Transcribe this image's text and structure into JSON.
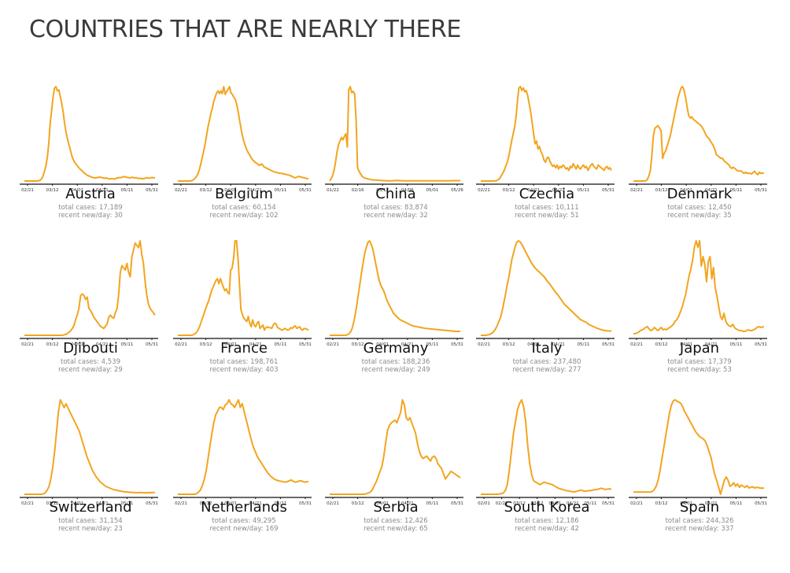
{
  "title": "COUNTRIES THAT ARE NEARLY THERE",
  "colors": {
    "line": "#F2A51F",
    "axis": "#111111"
  },
  "stat_labels": {
    "total": "total cases: ",
    "recent": "recent new/day: "
  },
  "chart_data": [
    {
      "type": "line",
      "country": "Austria",
      "total_cases": "17,189",
      "recent_per_day": "30",
      "x_ticks": [
        "02/21",
        "03/12",
        "04/01",
        "04/21",
        "05/11",
        "05/31"
      ],
      "values": [
        0,
        0,
        0,
        0,
        0,
        0,
        0,
        0,
        0,
        1,
        3,
        8,
        20,
        45,
        88,
        140,
        215,
        340,
        520,
        640,
        760,
        835,
        850,
        810,
        820,
        760,
        700,
        620,
        520,
        440,
        380,
        330,
        280,
        230,
        195,
        170,
        150,
        135,
        120,
        105,
        95,
        80,
        70,
        60,
        50,
        45,
        40,
        35,
        30,
        28,
        30,
        30,
        35,
        35,
        30,
        28,
        25,
        28,
        22,
        20,
        20,
        22,
        20,
        18,
        25,
        30,
        32,
        30,
        35,
        40,
        38,
        35,
        32,
        30,
        28,
        35,
        30,
        28,
        30,
        25,
        22,
        25,
        20,
        22,
        25,
        28,
        30,
        25,
        30,
        32,
        28,
        30
      ]
    },
    {
      "type": "line",
      "country": "Belgium",
      "total_cases": "60,154",
      "recent_per_day": "102",
      "x_ticks": [
        "02/21",
        "03/12",
        "04/01",
        "04/21",
        "05/11",
        "05/31"
      ],
      "values": [
        0,
        0,
        0,
        0,
        0,
        0,
        0,
        0,
        0,
        2,
        8,
        20,
        40,
        65,
        100,
        160,
        240,
        330,
        420,
        520,
        640,
        760,
        850,
        950,
        1020,
        1120,
        1180,
        1240,
        1270,
        1230,
        1270,
        1230,
        1330,
        1220,
        1260,
        1290,
        1330,
        1240,
        1220,
        1180,
        1150,
        1080,
        980,
        860,
        740,
        640,
        560,
        500,
        440,
        400,
        370,
        330,
        300,
        280,
        260,
        250,
        230,
        220,
        240,
        230,
        200,
        190,
        180,
        170,
        160,
        150,
        140,
        130,
        125,
        120,
        115,
        110,
        108,
        105,
        100,
        95,
        90,
        85,
        80,
        70,
        60,
        50,
        45,
        55,
        65,
        60,
        55,
        50,
        45,
        40,
        35,
        30
      ]
    },
    {
      "type": "line",
      "country": "China",
      "total_cases": "83,874",
      "recent_per_day": "32",
      "x_ticks": [
        "01/22",
        "02/16",
        "03/12",
        "04/06",
        "05/01",
        "05/26"
      ],
      "values": [
        0,
        200,
        450,
        900,
        1600,
        2400,
        3000,
        3300,
        3600,
        3400,
        3700,
        3900,
        2800,
        7500,
        7800,
        7300,
        7400,
        7200,
        5000,
        1100,
        800,
        600,
        400,
        300,
        250,
        200,
        180,
        150,
        120,
        100,
        90,
        80,
        70,
        60,
        60,
        50,
        40,
        30,
        30,
        20,
        20,
        20,
        20,
        25,
        30,
        40,
        50,
        40,
        30,
        25,
        20,
        20,
        15,
        20,
        15,
        10,
        10,
        10,
        10,
        10,
        10,
        10,
        10,
        10,
        10,
        10,
        10,
        10,
        10,
        15,
        20,
        15,
        10,
        10,
        10,
        10,
        10,
        10,
        10,
        10,
        10,
        15,
        20,
        25,
        30,
        30,
        32,
        30,
        32,
        32
      ]
    },
    {
      "type": "line",
      "country": "Czechia",
      "total_cases": "10,111",
      "recent_per_day": "51",
      "x_ticks": [
        "02/21",
        "03/12",
        "04/01",
        "04/21",
        "05/11",
        "05/31"
      ],
      "values": [
        0,
        0,
        0,
        0,
        0,
        0,
        0,
        0,
        0,
        0,
        1,
        2,
        5,
        10,
        20,
        30,
        40,
        55,
        70,
        90,
        120,
        150,
        175,
        200,
        240,
        300,
        350,
        355,
        340,
        350,
        335,
        340,
        320,
        290,
        260,
        220,
        180,
        140,
        150,
        120,
        130,
        110,
        100,
        80,
        70,
        85,
        90,
        75,
        65,
        55,
        60,
        50,
        60,
        45,
        55,
        50,
        60,
        55,
        45,
        50,
        40,
        55,
        50,
        65,
        55,
        45,
        60,
        50,
        45,
        55,
        60,
        50,
        55,
        40,
        50,
        60,
        65,
        55,
        50,
        45,
        60,
        55,
        50,
        45,
        40,
        50,
        55,
        45,
        50,
        40
      ]
    },
    {
      "type": "line",
      "country": "Denmark",
      "total_cases": "12,450",
      "recent_per_day": "35",
      "x_ticks": [
        "02/21",
        "03/12",
        "04/01",
        "04/21",
        "05/11",
        "05/31"
      ],
      "values": [
        0,
        0,
        0,
        0,
        0,
        0,
        0,
        0,
        1,
        5,
        20,
        40,
        100,
        180,
        210,
        215,
        220,
        210,
        200,
        90,
        110,
        120,
        140,
        160,
        180,
        210,
        240,
        270,
        300,
        330,
        350,
        370,
        375,
        360,
        330,
        290,
        260,
        250,
        255,
        245,
        240,
        235,
        230,
        225,
        220,
        210,
        200,
        185,
        175,
        170,
        160,
        150,
        140,
        125,
        105,
        100,
        95,
        90,
        90,
        80,
        75,
        70,
        65,
        55,
        50,
        55,
        50,
        45,
        40,
        40,
        40,
        35,
        30,
        35,
        30,
        32,
        30,
        28,
        35,
        38,
        30,
        25,
        35,
        30,
        32,
        30
      ]
    },
    {
      "type": "line",
      "country": "Djibouti",
      "total_cases": "4,539",
      "recent_per_day": "29",
      "x_ticks": [
        "02/21",
        "03/12",
        "04/01",
        "04/21",
        "05/11",
        "05/31"
      ],
      "values": [
        0,
        0,
        0,
        0,
        0,
        0,
        0,
        0,
        0,
        0,
        0,
        0,
        0,
        0,
        0,
        0,
        0,
        0,
        0,
        0,
        0,
        0,
        0,
        0,
        1,
        2,
        4,
        7,
        10,
        15,
        22,
        35,
        45,
        60,
        88,
        92,
        89,
        80,
        85,
        60,
        55,
        48,
        40,
        35,
        30,
        25,
        20,
        18,
        15,
        20,
        25,
        40,
        45,
        40,
        38,
        50,
        60,
        90,
        140,
        155,
        150,
        145,
        160,
        140,
        130,
        175,
        190,
        205,
        200,
        195,
        210,
        180,
        160,
        120,
        90,
        70,
        60,
        55,
        50,
        45
      ]
    },
    {
      "type": "line",
      "country": "France",
      "total_cases": "198,761",
      "recent_per_day": "403",
      "x_ticks": [
        "02/21",
        "03/12",
        "04/01",
        "04/21",
        "05/11",
        "05/31"
      ],
      "values": [
        0,
        0,
        0,
        0,
        0,
        0,
        0,
        0,
        0,
        0,
        20,
        50,
        100,
        200,
        350,
        550,
        800,
        1050,
        1300,
        1550,
        1800,
        2000,
        2300,
        2600,
        2800,
        3000,
        3200,
        3300,
        3000,
        3300,
        3050,
        2800,
        2600,
        2700,
        2500,
        2400,
        3800,
        3900,
        4500,
        5500,
        5500,
        4500,
        3000,
        1500,
        1200,
        1000,
        900,
        800,
        1100,
        700,
        500,
        900,
        600,
        500,
        700,
        800,
        400,
        500,
        600,
        300,
        450,
        500,
        450,
        450,
        400,
        600,
        700,
        650,
        450,
        400,
        350,
        300,
        350,
        400,
        350,
        300,
        350,
        450,
        400,
        500,
        550,
        400,
        450,
        500,
        350,
        300,
        400,
        380,
        350,
        300
      ]
    },
    {
      "type": "line",
      "country": "Germany",
      "total_cases": "188,236",
      "recent_per_day": "249",
      "x_ticks": [
        "02/21",
        "03/12",
        "04/01",
        "04/21",
        "05/11",
        "05/31"
      ],
      "values": [
        0,
        0,
        0,
        0,
        0,
        0,
        0,
        0,
        0,
        0,
        5,
        30,
        80,
        200,
        400,
        800,
        1300,
        1900,
        2600,
        3300,
        4000,
        4600,
        5200,
        5600,
        5900,
        6000,
        5800,
        5500,
        5000,
        4500,
        4000,
        3500,
        3200,
        3000,
        2800,
        2500,
        2200,
        2000,
        1800,
        1600,
        1400,
        1300,
        1200,
        1100,
        1000,
        950,
        900,
        850,
        800,
        750,
        700,
        650,
        600,
        580,
        560,
        540,
        520,
        500,
        480,
        460,
        440,
        430,
        420,
        410,
        400,
        390,
        380,
        370,
        360,
        350,
        340,
        330,
        320,
        310,
        300,
        290,
        280,
        270,
        260,
        250,
        250,
        250,
        250
      ]
    },
    {
      "type": "line",
      "country": "Italy",
      "total_cases": "237,480",
      "recent_per_day": "277",
      "x_ticks": [
        "02/21",
        "03/12",
        "04/01",
        "04/21",
        "05/11",
        "05/31"
      ],
      "values": [
        0,
        0,
        0,
        0,
        20,
        40,
        80,
        150,
        250,
        400,
        600,
        850,
        1100,
        1500,
        2000,
        2500,
        3100,
        3600,
        4200,
        4800,
        5200,
        5600,
        5900,
        6000,
        5950,
        5800,
        5600,
        5400,
        5200,
        5000,
        4800,
        4600,
        4450,
        4300,
        4200,
        4100,
        4000,
        3900,
        3800,
        3700,
        3550,
        3400,
        3300,
        3150,
        3000,
        2850,
        2700,
        2600,
        2450,
        2300,
        2150,
        2000,
        1900,
        1800,
        1700,
        1600,
        1500,
        1400,
        1300,
        1200,
        1100,
        1000,
        950,
        900,
        850,
        800,
        700,
        650,
        600,
        550,
        500,
        460,
        420,
        380,
        350,
        320,
        300,
        290,
        280,
        277,
        277
      ]
    },
    {
      "type": "line",
      "country": "Japan",
      "total_cases": "17,379",
      "recent_per_day": "53",
      "x_ticks": [
        "02/21",
        "03/12",
        "04/01",
        "04/21",
        "05/11",
        "05/31"
      ],
      "values": [
        10,
        10,
        15,
        20,
        30,
        35,
        40,
        50,
        55,
        40,
        30,
        35,
        50,
        40,
        30,
        40,
        50,
        35,
        40,
        35,
        45,
        50,
        60,
        70,
        90,
        100,
        120,
        150,
        180,
        220,
        260,
        320,
        380,
        420,
        480,
        560,
        600,
        560,
        600,
        440,
        500,
        450,
        340,
        470,
        500,
        360,
        430,
        300,
        250,
        180,
        120,
        100,
        140,
        90,
        70,
        60,
        55,
        70,
        50,
        40,
        35,
        30,
        30,
        25,
        25,
        30,
        35,
        30,
        30,
        35,
        40,
        50,
        55,
        50,
        53,
        53
      ]
    },
    {
      "type": "line",
      "country": "Switzerland",
      "total_cases": "31,154",
      "recent_per_day": "23",
      "x_ticks": [
        "02/21",
        "03/12",
        "04/01",
        "04/21",
        "05/11",
        "05/31"
      ],
      "values": [
        0,
        0,
        0,
        0,
        0,
        0,
        0,
        0,
        0,
        0,
        5,
        20,
        50,
        100,
        200,
        350,
        550,
        800,
        1050,
        1200,
        1150,
        1100,
        1150,
        1100,
        1050,
        1000,
        950,
        900,
        850,
        800,
        720,
        640,
        560,
        480,
        420,
        360,
        300,
        260,
        220,
        190,
        160,
        140,
        120,
        100,
        90,
        80,
        70,
        60,
        55,
        50,
        45,
        40,
        35,
        30,
        30,
        28,
        25,
        25,
        22,
        20,
        20,
        22,
        20,
        20,
        18,
        20,
        22,
        20,
        22,
        23
      ]
    },
    {
      "type": "line",
      "country": "Netherlands",
      "total_cases": "49,295",
      "recent_per_day": "169",
      "x_ticks": [
        "02/21",
        "03/12",
        "04/01",
        "04/21",
        "05/11",
        "05/31"
      ],
      "values": [
        0,
        0,
        0,
        0,
        0,
        0,
        0,
        0,
        0,
        0,
        10,
        30,
        60,
        120,
        200,
        320,
        480,
        650,
        800,
        950,
        1050,
        1100,
        1150,
        1150,
        1120,
        1180,
        1200,
        1250,
        1200,
        1180,
        1150,
        1200,
        1250,
        1150,
        1200,
        1100,
        1000,
        900,
        800,
        700,
        620,
        560,
        500,
        460,
        420,
        380,
        340,
        300,
        270,
        240,
        220,
        200,
        190,
        180,
        175,
        170,
        165,
        160,
        170,
        180,
        190,
        170,
        160,
        165,
        175,
        180,
        170,
        160,
        165,
        169
      ]
    },
    {
      "type": "line",
      "country": "Serbia",
      "total_cases": "12,426",
      "recent_per_day": "65",
      "x_ticks": [
        "02/21",
        "03/12",
        "04/01",
        "04/21",
        "05/11",
        "05/31"
      ],
      "values": [
        0,
        0,
        0,
        0,
        0,
        0,
        0,
        0,
        0,
        0,
        0,
        0,
        0,
        0,
        0,
        0,
        0,
        0,
        0,
        1,
        3,
        6,
        10,
        20,
        35,
        50,
        70,
        90,
        110,
        150,
        200,
        250,
        270,
        280,
        285,
        290,
        280,
        300,
        320,
        370,
        350,
        300,
        290,
        300,
        280,
        260,
        240,
        200,
        170,
        150,
        140,
        145,
        150,
        140,
        130,
        145,
        150,
        140,
        120,
        110,
        100,
        80,
        60,
        70,
        80,
        90,
        85,
        80,
        75,
        70,
        65
      ]
    },
    {
      "type": "line",
      "country": "South Korea",
      "total_cases": "12,186",
      "recent_per_day": "42",
      "x_ticks": [
        "02/01",
        "02/21",
        "03/12",
        "03/12",
        "04/01",
        "04/21",
        "05/11",
        "05/31"
      ],
      "values": [
        0,
        0,
        0,
        0,
        0,
        0,
        0,
        0,
        0,
        2,
        5,
        10,
        30,
        80,
        200,
        350,
        500,
        600,
        700,
        750,
        780,
        720,
        600,
        400,
        250,
        160,
        110,
        100,
        90,
        80,
        90,
        100,
        95,
        90,
        85,
        80,
        70,
        60,
        50,
        45,
        40,
        35,
        30,
        28,
        25,
        20,
        20,
        25,
        30,
        35,
        30,
        25,
        28,
        30,
        32,
        35,
        38,
        40,
        45,
        50,
        45,
        40,
        42,
        45,
        42
      ]
    },
    {
      "type": "line",
      "country": "Spain",
      "total_cases": "244,326",
      "recent_per_day": "337",
      "x_ticks": [
        "02/21",
        "03/12",
        "04/01",
        "04/21",
        "05/11",
        "05/31"
      ],
      "values": [
        0,
        0,
        0,
        0,
        0,
        0,
        0,
        0,
        0,
        5,
        50,
        200,
        500,
        1000,
        1800,
        2800,
        3800,
        4800,
        5800,
        6800,
        7500,
        7900,
        8000,
        7900,
        7800,
        7700,
        7400,
        7000,
        6700,
        6400,
        6100,
        5800,
        5500,
        5200,
        5000,
        4800,
        4700,
        4600,
        4400,
        4000,
        3500,
        3000,
        2200,
        1500,
        1000,
        400,
        -200,
        400,
        1000,
        1300,
        1000,
        500,
        600,
        800,
        500,
        700,
        400,
        600,
        500,
        400,
        550,
        350,
        400,
        450,
        350,
        400,
        380,
        350,
        330,
        337
      ]
    }
  ]
}
